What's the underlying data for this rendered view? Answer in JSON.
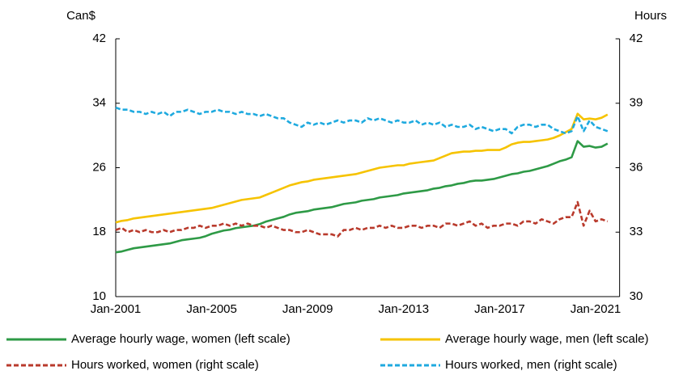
{
  "chart_data": {
    "type": "line",
    "y_label": "Can$",
    "y2_label": "Hours",
    "categories": [
      "Jan-2001",
      null,
      null,
      null,
      null,
      null,
      null,
      null,
      null,
      null,
      null,
      null,
      null,
      null,
      null,
      null,
      "Jan-2005",
      null,
      null,
      null,
      null,
      null,
      null,
      null,
      null,
      null,
      null,
      null,
      null,
      null,
      null,
      null,
      "Jan-2009",
      null,
      null,
      null,
      null,
      null,
      null,
      null,
      null,
      null,
      null,
      null,
      null,
      null,
      null,
      null,
      "Jan-2013",
      null,
      null,
      null,
      null,
      null,
      null,
      null,
      null,
      null,
      null,
      null,
      null,
      null,
      null,
      null,
      "Jan-2017",
      null,
      null,
      null,
      null,
      null,
      null,
      null,
      null,
      null,
      null,
      null,
      null,
      null,
      null,
      null,
      "Jan-2021",
      null,
      null
    ],
    "ylim": [
      10,
      42
    ],
    "yticks": [
      10,
      18,
      26,
      34,
      42
    ],
    "y2lim": [
      30,
      42
    ],
    "y2ticks": [
      30,
      33,
      36,
      39,
      42
    ],
    "series": [
      {
        "name": "Average hourly wage, women (left scale)",
        "color": "#2e9a46",
        "dash": false,
        "axis": "y",
        "values": [
          15.5,
          15.6,
          15.8,
          16.0,
          16.1,
          16.2,
          16.3,
          16.4,
          16.5,
          16.6,
          16.8,
          17.0,
          17.1,
          17.2,
          17.3,
          17.5,
          17.8,
          18.0,
          18.2,
          18.3,
          18.5,
          18.6,
          18.7,
          18.8,
          19.0,
          19.3,
          19.5,
          19.7,
          19.9,
          20.2,
          20.4,
          20.5,
          20.6,
          20.8,
          20.9,
          21.0,
          21.1,
          21.3,
          21.5,
          21.6,
          21.7,
          21.9,
          22.0,
          22.1,
          22.3,
          22.4,
          22.5,
          22.6,
          22.8,
          22.9,
          23.0,
          23.1,
          23.2,
          23.4,
          23.5,
          23.7,
          23.8,
          24.0,
          24.1,
          24.3,
          24.4,
          24.4,
          24.5,
          24.6,
          24.8,
          25.0,
          25.2,
          25.3,
          25.5,
          25.6,
          25.8,
          26.0,
          26.2,
          26.5,
          26.8,
          27.0,
          27.3,
          29.3,
          28.6,
          28.7,
          28.5,
          28.6,
          29.0
        ]
      },
      {
        "name": "Average hourly wage, men (left scale)",
        "color": "#f6c300",
        "dash": false,
        "axis": "y",
        "values": [
          19.2,
          19.4,
          19.5,
          19.7,
          19.8,
          19.9,
          20.0,
          20.1,
          20.2,
          20.3,
          20.4,
          20.5,
          20.6,
          20.7,
          20.8,
          20.9,
          21.0,
          21.2,
          21.4,
          21.6,
          21.8,
          22.0,
          22.1,
          22.2,
          22.3,
          22.6,
          22.9,
          23.2,
          23.5,
          23.8,
          24.0,
          24.2,
          24.3,
          24.5,
          24.6,
          24.7,
          24.8,
          24.9,
          25.0,
          25.1,
          25.2,
          25.4,
          25.6,
          25.8,
          26.0,
          26.1,
          26.2,
          26.3,
          26.3,
          26.5,
          26.6,
          26.7,
          26.8,
          26.9,
          27.2,
          27.5,
          27.8,
          27.9,
          28.0,
          28.0,
          28.1,
          28.1,
          28.2,
          28.2,
          28.2,
          28.5,
          28.9,
          29.1,
          29.2,
          29.2,
          29.3,
          29.4,
          29.5,
          29.7,
          30.0,
          30.4,
          30.8,
          32.7,
          32.0,
          32.1,
          32.0,
          32.2,
          32.6
        ]
      },
      {
        "name": "Hours worked, women (right scale)",
        "color": "#b93a2c",
        "dash": true,
        "axis": "y2",
        "values": [
          33.1,
          33.2,
          33.0,
          33.1,
          33.0,
          33.1,
          33.0,
          33.0,
          33.1,
          33.0,
          33.1,
          33.1,
          33.2,
          33.2,
          33.3,
          33.2,
          33.3,
          33.3,
          33.4,
          33.3,
          33.4,
          33.3,
          33.4,
          33.3,
          33.3,
          33.2,
          33.3,
          33.2,
          33.1,
          33.1,
          33.0,
          33.0,
          33.1,
          33.0,
          32.9,
          32.9,
          32.9,
          32.8,
          33.1,
          33.1,
          33.2,
          33.1,
          33.2,
          33.2,
          33.3,
          33.2,
          33.3,
          33.2,
          33.2,
          33.3,
          33.3,
          33.2,
          33.3,
          33.3,
          33.2,
          33.4,
          33.4,
          33.3,
          33.4,
          33.5,
          33.3,
          33.4,
          33.2,
          33.3,
          33.3,
          33.4,
          33.4,
          33.3,
          33.5,
          33.5,
          33.4,
          33.6,
          33.5,
          33.4,
          33.6,
          33.7,
          33.7,
          34.4,
          33.3,
          34.0,
          33.5,
          33.6,
          33.5
        ]
      },
      {
        "name": "Hours worked, men (right scale)",
        "color": "#1faadf",
        "dash": true,
        "axis": "y2",
        "values": [
          38.8,
          38.7,
          38.7,
          38.6,
          38.6,
          38.5,
          38.6,
          38.5,
          38.6,
          38.4,
          38.6,
          38.6,
          38.7,
          38.6,
          38.5,
          38.6,
          38.6,
          38.7,
          38.6,
          38.6,
          38.5,
          38.6,
          38.5,
          38.5,
          38.4,
          38.5,
          38.4,
          38.3,
          38.3,
          38.1,
          38.0,
          37.9,
          38.1,
          38.0,
          38.1,
          38.0,
          38.1,
          38.2,
          38.1,
          38.2,
          38.2,
          38.1,
          38.3,
          38.2,
          38.3,
          38.2,
          38.1,
          38.2,
          38.1,
          38.1,
          38.2,
          38.0,
          38.1,
          38.0,
          38.1,
          37.9,
          38.0,
          37.9,
          37.9,
          38.0,
          37.8,
          37.9,
          37.8,
          37.7,
          37.8,
          37.8,
          37.6,
          37.9,
          38.0,
          38.0,
          37.9,
          38.0,
          38.0,
          37.8,
          37.7,
          37.6,
          37.7,
          38.4,
          37.7,
          38.2,
          37.9,
          37.8,
          37.7
        ]
      }
    ]
  }
}
